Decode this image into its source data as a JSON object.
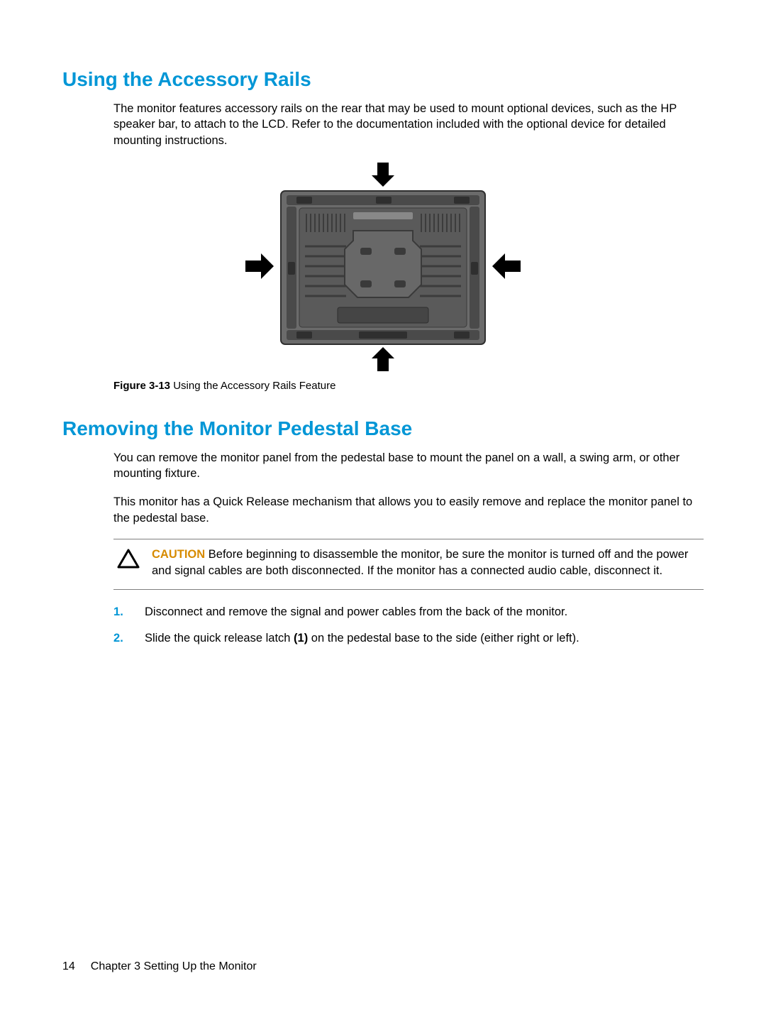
{
  "s1": {
    "heading": "Using the Accessory Rails",
    "para1": "The monitor features accessory rails on the rear that may be used to mount optional devices, such as the HP speaker bar, to attach to the LCD. Refer to the documentation included with the optional device for detailed mounting instructions."
  },
  "figure": {
    "label": "Figure 3-13",
    "caption_rest": "  Using the Accessory Rails Feature",
    "svg": {
      "bg_frame": "#6b6b6b",
      "bg_panel_dark": "#4a4a4a",
      "bg_panel_mid": "#5a5a5a",
      "rib": "#3c3c3c",
      "arrow": "#000000",
      "screw": "#3a3a3a",
      "highlight": "#888888"
    }
  },
  "s2": {
    "heading": "Removing the Monitor Pedestal Base",
    "para1": "You can remove the monitor panel from the pedestal base to mount the panel on a wall, a swing arm, or other mounting fixture.",
    "para2": "This monitor has a Quick Release mechanism that allows you to easily remove and replace the monitor panel to the pedestal base."
  },
  "caution": {
    "label": "CAUTION",
    "text": "   Before beginning to disassemble the monitor, be sure the monitor is turned off and the power and signal cables are both disconnected. If the monitor has a connected audio cable, disconnect it."
  },
  "steps": [
    "Disconnect and remove the signal and power cables from the back of the monitor.",
    "Slide the quick release latch (1) on the pedestal base to the side (either right or left)."
  ],
  "step2_bold_marker": "(1)",
  "footer": {
    "page_number": "14",
    "chapter": "Chapter 3   Setting Up the Monitor"
  }
}
